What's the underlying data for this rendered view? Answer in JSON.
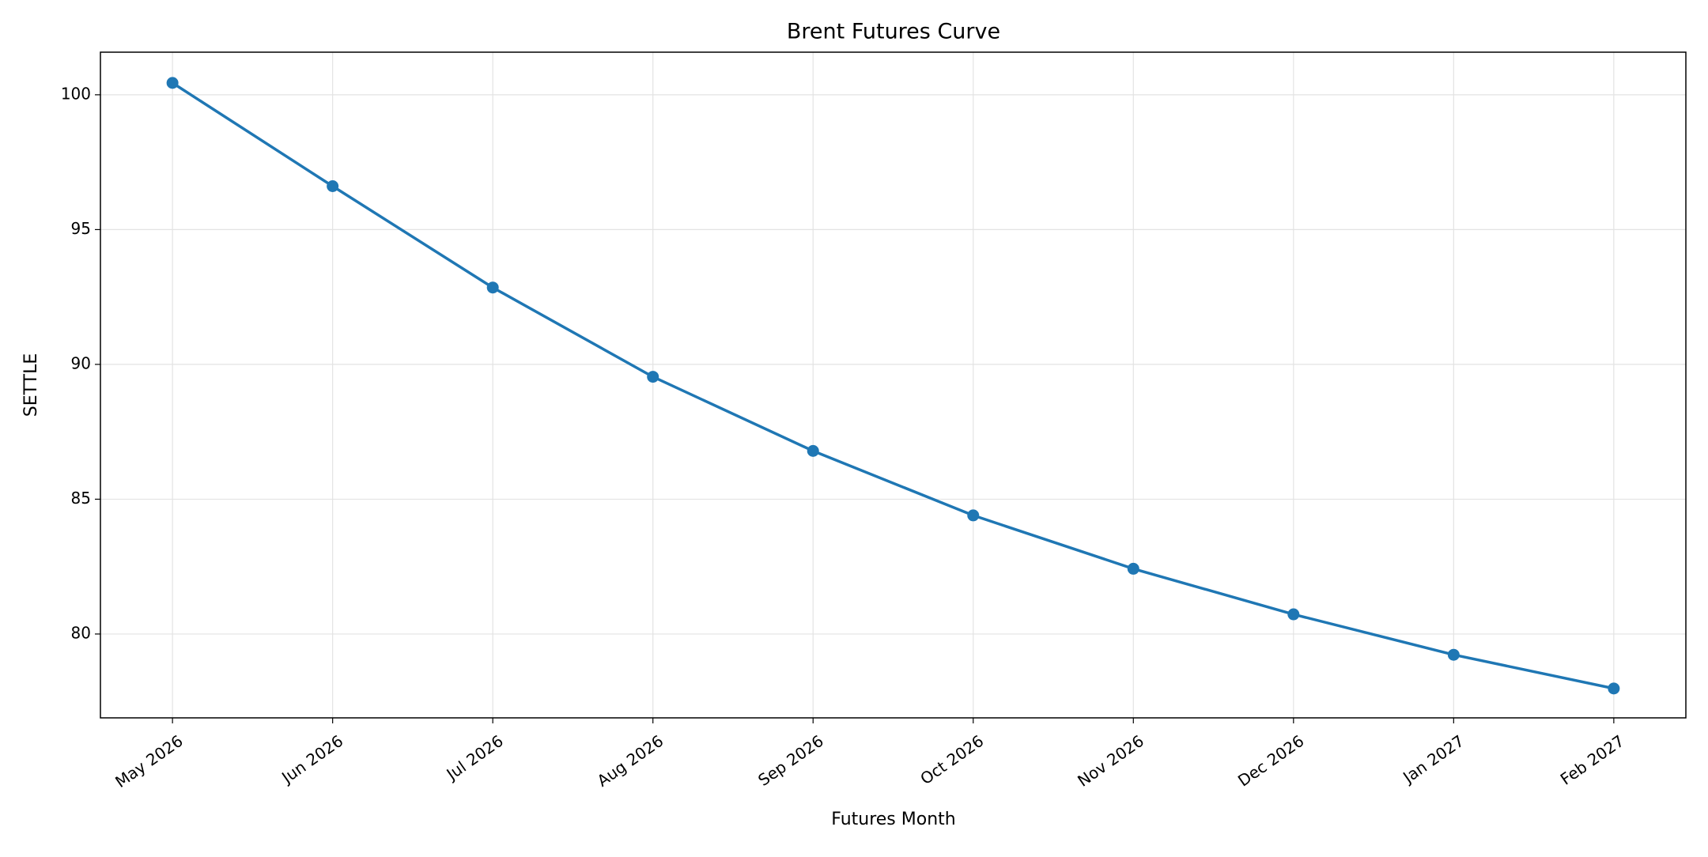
{
  "chart_data": {
    "type": "line",
    "title": "Brent Futures Curve",
    "x_label": "Futures Month",
    "y_label": "SETTLE",
    "categories": [
      "May 2026",
      "Jun 2026",
      "Jul 2026",
      "Aug 2026",
      "Sep 2026",
      "Oct 2026",
      "Nov 2026",
      "Dec 2026",
      "Jan 2027",
      "Feb 2027"
    ],
    "series": [
      {
        "name": "SETTLE",
        "color": "#1f77b4",
        "values": [
          100.44,
          96.61,
          92.85,
          89.54,
          86.79,
          84.4,
          82.42,
          80.73,
          79.23,
          77.98
        ]
      }
    ],
    "ylim": [
      76.89,
      101.58
    ],
    "yticks": [
      80,
      85,
      90,
      95,
      100
    ],
    "grid": true,
    "markers": true
  }
}
